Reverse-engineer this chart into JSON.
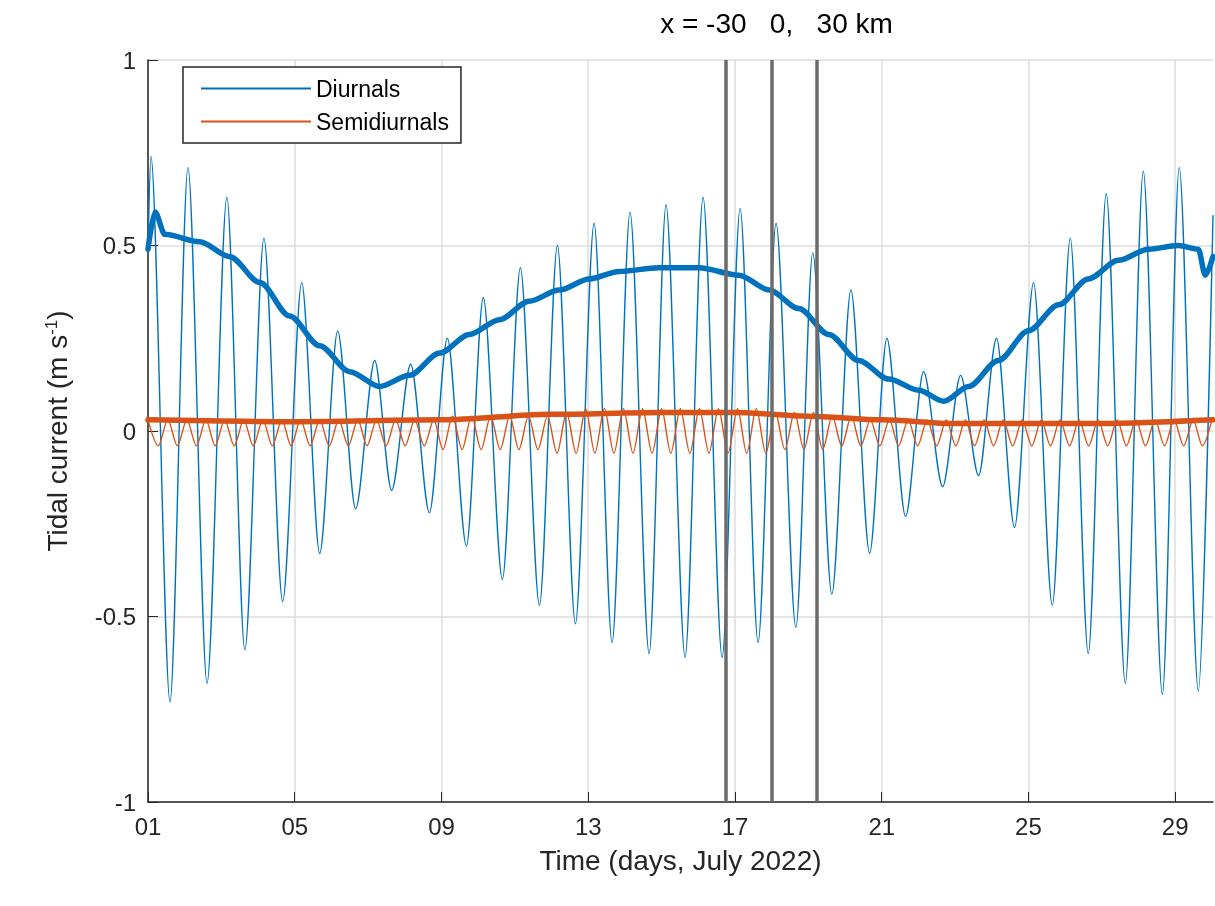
{
  "chart_data": {
    "type": "line",
    "title": "x = -30   0,   30 km",
    "xlabel": "Time (days, July 2022)",
    "ylabel": "Tidal current (m s$^{-1}$)",
    "xlim": [
      1,
      30.03
    ],
    "xticks": [
      {
        "value": 1,
        "label": "01"
      },
      {
        "value": 5,
        "label": "05"
      },
      {
        "value": 9,
        "label": "09"
      },
      13,
      17,
      21,
      25,
      29
    ],
    "ylim": [
      -1,
      1
    ],
    "yticks": [
      -1,
      -0.5,
      0,
      0.5,
      1
    ],
    "grid": true,
    "legend": "top left",
    "marker": "none",
    "line_style": "solid",
    "ref_lines": [
      {
        "axis": "x",
        "value": 16.76,
        "color": "#6b6b6b"
      },
      {
        "axis": "x",
        "value": 18.01,
        "color": "#6b6b6b"
      },
      {
        "axis": "x",
        "value": 19.23,
        "color": "#6b6b6b"
      }
    ],
    "series": [
      {
        "name": "Diurnals",
        "color": "#0072bd",
        "x": [
          1,
          1.08,
          1.6,
          2.09,
          2.61,
          3.15,
          3.64,
          4.16,
          4.67,
          5.19,
          5.68,
          6.17,
          6.66,
          7.18,
          7.64,
          8.16,
          8.67,
          9.16,
          9.68,
          10.14,
          10.66,
          11.15,
          11.67,
          12.16,
          12.65,
          13.16,
          13.65,
          14.14,
          14.66,
          15.12,
          15.64,
          16.13,
          16.65,
          17.14,
          17.63,
          18.12,
          18.66,
          19.12,
          19.64,
          20.16,
          20.67,
          21.14,
          21.65,
          22.14,
          22.66,
          23.15,
          23.64,
          24.13,
          24.62,
          25.14,
          25.65,
          26.14,
          26.63,
          27.12,
          27.64,
          28.13,
          28.65,
          29.11,
          29.63,
          30.03
        ],
        "values": [
          0.49,
          0.74,
          -0.73,
          0.71,
          -0.68,
          0.63,
          -0.59,
          0.52,
          -0.46,
          0.4,
          -0.33,
          0.27,
          -0.21,
          0.19,
          -0.16,
          0.18,
          -0.22,
          0.25,
          -0.31,
          0.36,
          -0.4,
          0.44,
          -0.47,
          0.5,
          -0.52,
          0.56,
          -0.57,
          0.59,
          -0.6,
          0.61,
          -0.61,
          0.63,
          -0.61,
          0.6,
          -0.57,
          0.56,
          -0.53,
          0.48,
          -0.44,
          0.38,
          -0.33,
          0.25,
          -0.23,
          0.16,
          -0.15,
          0.15,
          -0.12,
          0.25,
          -0.26,
          0.4,
          -0.47,
          0.52,
          -0.6,
          0.64,
          -0.68,
          0.7,
          -0.71,
          0.71,
          -0.7,
          0.58
        ]
      },
      {
        "color": "#0072bd",
        "x": [
          1,
          1.19,
          1.46,
          2.41,
          3.23,
          4.05,
          4.86,
          5.68,
          6.5,
          7.31,
          8.13,
          8.95,
          9.76,
          10.58,
          11.39,
          12.21,
          13.03,
          13.84,
          14.93,
          16.02,
          17.11,
          17.93,
          18.74,
          19.56,
          20.37,
          21.19,
          22.01,
          22.69,
          23.37,
          24.18,
          25,
          25.82,
          26.63,
          27.45,
          28.27,
          29.08,
          29.63,
          29.82,
          30.03
        ],
        "values": [
          0.49,
          0.59,
          0.53,
          0.51,
          0.47,
          0.4,
          0.31,
          0.23,
          0.16,
          0.12,
          0.15,
          0.21,
          0.26,
          0.3,
          0.35,
          0.38,
          0.41,
          0.43,
          0.44,
          0.44,
          0.42,
          0.38,
          0.33,
          0.26,
          0.19,
          0.14,
          0.11,
          0.08,
          0.12,
          0.19,
          0.27,
          0.34,
          0.41,
          0.46,
          0.49,
          0.5,
          0.49,
          0.42,
          0.47
        ]
      },
      {
        "name": "Semidiurnals",
        "color": "#d95319",
        "x": [
          1,
          1.28,
          1.54,
          1.8,
          2.06,
          2.32,
          2.58,
          2.83,
          3.09,
          3.35,
          3.61,
          3.87,
          4.13,
          4.39,
          4.65,
          4.9,
          5.16,
          5.42,
          5.68,
          5.94,
          6.2,
          6.46,
          6.72,
          6.97,
          7.23,
          7.49,
          7.75,
          8.01,
          8.27,
          8.53,
          8.79,
          9.04,
          9.3,
          9.56,
          9.82,
          10.08,
          10.34,
          10.6,
          10.86,
          11.11,
          11.37,
          11.63,
          11.89,
          12.15,
          12.41,
          12.67,
          12.93,
          13.18,
          13.44,
          13.7,
          13.96,
          14.22,
          14.48,
          14.74,
          15,
          15.25,
          15.51,
          15.77,
          16.03,
          16.29,
          16.55,
          16.81,
          17.07,
          17.32,
          17.58,
          17.84,
          18.1,
          18.36,
          18.62,
          18.88,
          19.14,
          19.39,
          19.65,
          19.91,
          20.17,
          20.43,
          20.69,
          20.95,
          21.21,
          21.46,
          21.72,
          21.98,
          22.24,
          22.5,
          22.76,
          23.02,
          23.28,
          23.53,
          23.79,
          24.05,
          24.31,
          24.57,
          24.83,
          25.09,
          25.35,
          25.6,
          25.86,
          26.12,
          26.38,
          26.64,
          26.9,
          27.16,
          27.42,
          27.67,
          27.93,
          28.19,
          28.45,
          28.71,
          28.97,
          29.23,
          29.49,
          29.74,
          30
        ],
        "values": [
          0.03,
          -0.04,
          0.03,
          -0.04,
          0.03,
          -0.04,
          0.03,
          -0.04,
          0.03,
          -0.04,
          0.03,
          -0.04,
          0.03,
          -0.04,
          0.03,
          -0.04,
          0.03,
          -0.04,
          0.03,
          -0.04,
          0.03,
          -0.04,
          0.03,
          -0.04,
          0.03,
          -0.04,
          0.03,
          -0.04,
          0.03,
          -0.04,
          0.03,
          -0.05,
          0.04,
          -0.05,
          0.04,
          -0.05,
          0.04,
          -0.05,
          0.04,
          -0.05,
          0.04,
          -0.05,
          0.04,
          -0.06,
          0.05,
          -0.06,
          0.06,
          -0.06,
          0.06,
          -0.06,
          0.06,
          -0.06,
          0.06,
          -0.06,
          0.06,
          -0.06,
          0.06,
          -0.06,
          0.06,
          -0.06,
          0.06,
          -0.06,
          0.06,
          -0.06,
          0.06,
          -0.06,
          0.05,
          -0.05,
          0.05,
          -0.05,
          0.05,
          -0.05,
          0.04,
          -0.04,
          0.04,
          -0.04,
          0.03,
          -0.04,
          0.03,
          -0.04,
          0.03,
          -0.04,
          0.03,
          -0.04,
          0.03,
          -0.04,
          0.03,
          -0.04,
          0.03,
          -0.04,
          0.03,
          -0.04,
          0.03,
          -0.04,
          0.03,
          -0.04,
          0.03,
          -0.04,
          0.03,
          -0.04,
          0.03,
          -0.04,
          0.03,
          -0.04,
          0.03,
          -0.04,
          0.03,
          -0.04,
          0.03,
          -0.04,
          0.03,
          -0.04,
          0.03
        ]
      },
      {
        "color": "#d95319",
        "x": [
          1,
          5,
          9,
          12,
          15,
          17,
          19,
          21,
          23,
          27,
          30.03
        ],
        "values": [
          0.03,
          0.025,
          0.03,
          0.045,
          0.05,
          0.05,
          0.04,
          0.03,
          0.02,
          0.02,
          0.03
        ]
      }
    ]
  }
}
